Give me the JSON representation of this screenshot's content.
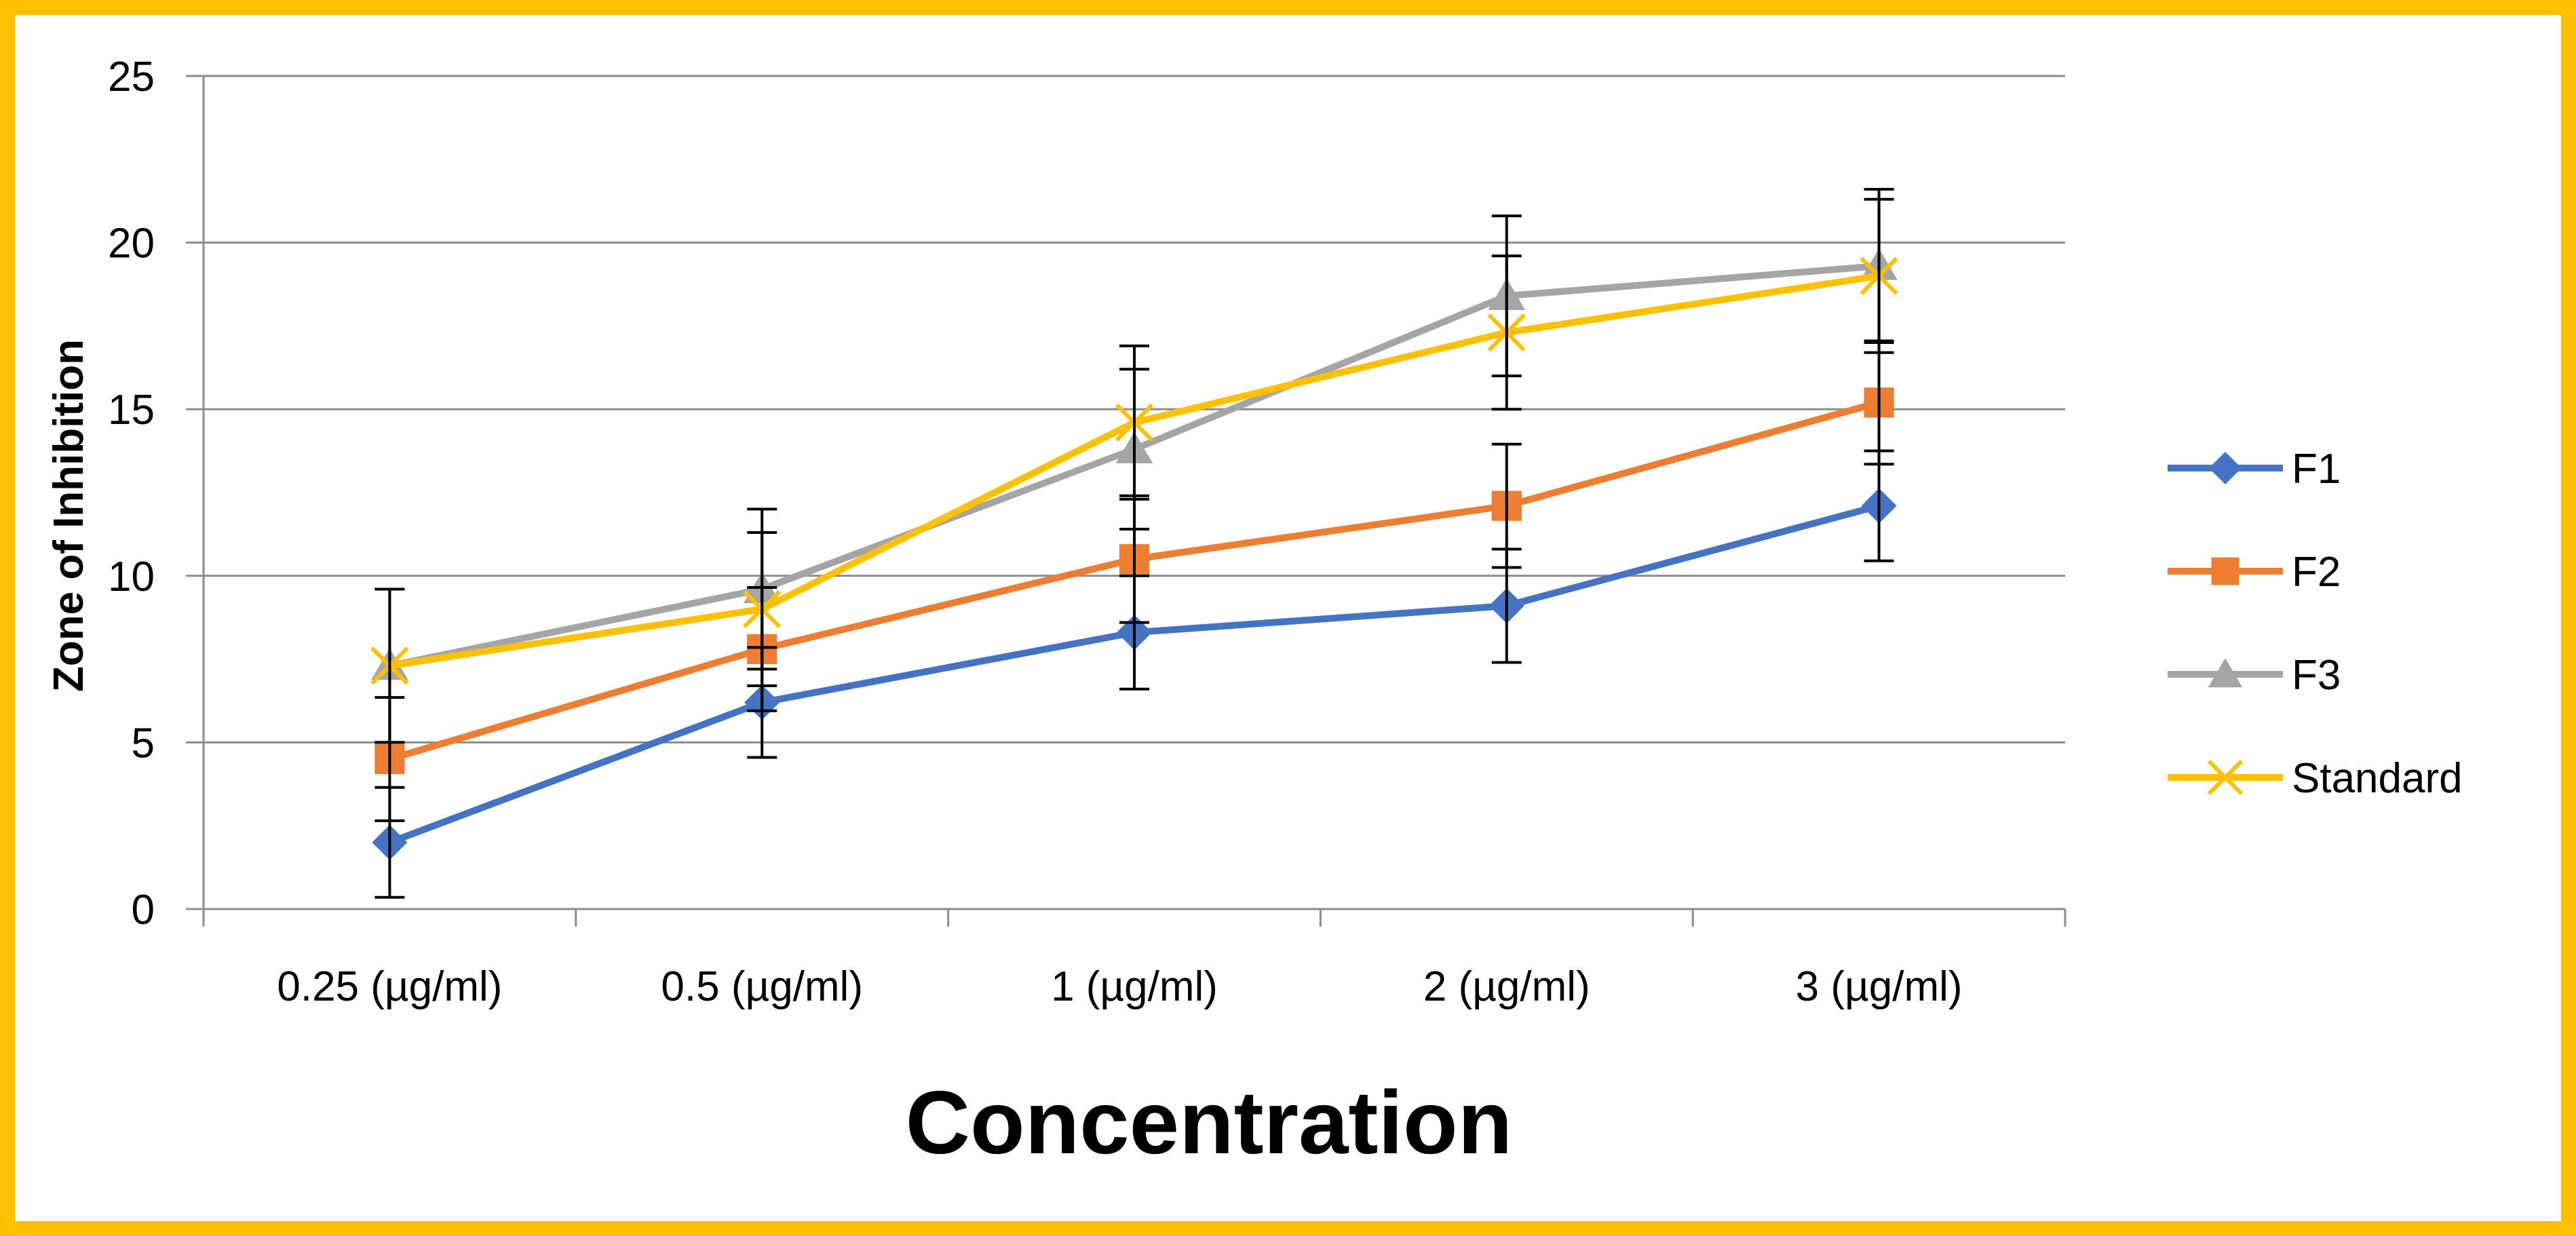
{
  "chart_data": {
    "type": "line",
    "title": "",
    "xlabel": "Concentration",
    "ylabel": "Zone of Inhibition",
    "categories": [
      "0.25 (µg/ml)",
      "0.5 (µg/ml)",
      "1 (µg/ml)",
      "2 (µg/ml)",
      "3 (µg/ml)"
    ],
    "yticks": [
      "0",
      "5",
      "10",
      "15",
      "20",
      "25"
    ],
    "ylim": [
      0,
      25
    ],
    "grid": true,
    "legend_position": "right",
    "series": [
      {
        "name": "F1",
        "color": "#4472C4",
        "marker": "diamond",
        "values": [
          2.0,
          6.2,
          8.3,
          9.1,
          12.1
        ],
        "error": [
          1.65,
          1.65,
          1.7,
          1.7,
          1.65
        ]
      },
      {
        "name": "F2",
        "color": "#ED7D31",
        "marker": "square",
        "values": [
          4.5,
          7.8,
          10.5,
          12.1,
          15.2
        ],
        "error": [
          1.85,
          1.85,
          1.9,
          1.85,
          1.85
        ]
      },
      {
        "name": "F3",
        "color": "#A5A5A5",
        "marker": "triangle",
        "values": [
          7.3,
          9.6,
          13.8,
          18.4,
          19.3
        ],
        "error": [
          2.3,
          2.4,
          2.4,
          2.4,
          2.3
        ]
      },
      {
        "name": "Standard",
        "color": "#FFC000",
        "marker": "x",
        "values": [
          7.3,
          9.0,
          14.6,
          17.3,
          19.0
        ],
        "error": [
          2.3,
          2.3,
          2.3,
          2.3,
          2.3
        ]
      }
    ]
  }
}
